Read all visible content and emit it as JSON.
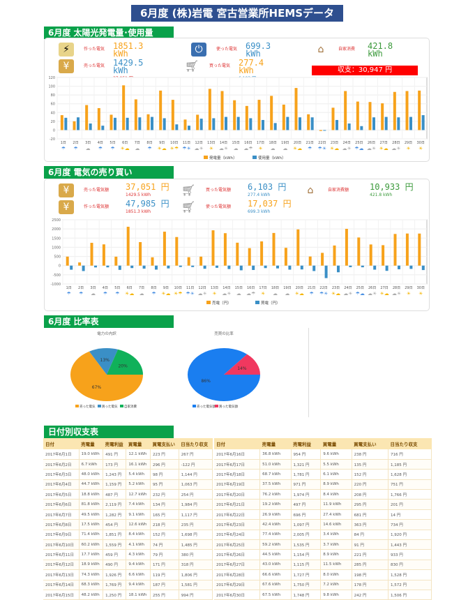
{
  "title": "6月度 (株)岩電 宮古営業所HEMSデータ",
  "sections": {
    "generation": "6月度  太陽光発電量･使用量",
    "trade": "6月度  電気の売り買い",
    "ratio": "6月度  比率表",
    "daily": "日付別収支表"
  },
  "summary1": {
    "made": {
      "label": "作った電気",
      "value": "1851.3",
      "unit": "kWh"
    },
    "used": {
      "label": "使った電気",
      "value": "699.3",
      "unit": "kWh"
    },
    "self": {
      "label": "自家消費",
      "value": "421.8",
      "unit": "kWh"
    },
    "sold": {
      "label": "売った電気",
      "value": "1429.5",
      "unit": "kWh",
      "yen": "37,051 円"
    },
    "bought": {
      "label": "買った電気",
      "value": "277.4",
      "unit": "kWh",
      "yen": "6,103 円"
    },
    "balance": "収支：30,947 円"
  },
  "summary2": {
    "sold": {
      "label": "売った電気額",
      "value": "37,051 円",
      "kwh": "1429.5 kWh"
    },
    "bought": {
      "label": "買った電気額",
      "value": "6,103 円",
      "kwh": "277.4 kWh"
    },
    "self": {
      "label": "自家消費額",
      "value": "10,933 円",
      "kwh": "421.8 kWh"
    },
    "made": {
      "label": "作った電気額",
      "value": "47,985 円",
      "kwh": "1851.3 kWh"
    },
    "used": {
      "label": "使った電気額",
      "value": "17,037 円",
      "kwh": "699.3 kWh"
    }
  },
  "colors": {
    "orange": "#f7a21b",
    "blue": "#3a8fc6",
    "green": "#3c9a3c",
    "red": "#ee3333",
    "pieBlue": "#1a7ef0",
    "pieRed": "#f0385f",
    "pieGreen": "#10b15a"
  },
  "weather": [
    "rain",
    "rain",
    "cloud",
    "rain",
    "rain",
    "sun-cloud",
    "cloud",
    "rain",
    "sun-cloud",
    "sun-rain",
    "rain-sun",
    "cloud-sun",
    "sun",
    "cloud-sun",
    "cloud",
    "cloud-rain",
    "sun",
    "cloud",
    "cloud",
    "sun-cloud",
    "rain",
    "rain-sun",
    "sun-cloud",
    "cloud-sun",
    "rain-cloud",
    "cloud-sun",
    "sun-cloud",
    "cloud-sun",
    "sun",
    "sun"
  ],
  "chart_data": [
    {
      "type": "bar",
      "title": "",
      "xlabel": "",
      "ylabel": "",
      "ylim": [
        -20,
        120
      ],
      "yticks": [
        "120",
        "100",
        "80",
        "60",
        "40",
        "20",
        "0",
        "-20"
      ],
      "categories": [
        "1日",
        "2日",
        "3日",
        "4日",
        "5日",
        "6日",
        "7日",
        "8日",
        "9日",
        "10日",
        "11日",
        "12日",
        "13日",
        "14日",
        "15日",
        "16日",
        "17日",
        "18日",
        "19日",
        "20日",
        "21日",
        "22日",
        "23日",
        "24日",
        "25日",
        "26日",
        "27日",
        "28日",
        "29日",
        "30日"
      ],
      "series": [
        {
          "name": "発電量（kWh）",
          "values": [
            34,
            20,
            57,
            50,
            35,
            102,
            70,
            36,
            90,
            69,
            24,
            35,
            94,
            89,
            68,
            55,
            69,
            78,
            58,
            96,
            36,
            -2,
            51,
            89,
            65,
            64,
            61,
            87,
            89,
            90
          ]
        },
        {
          "name": "使用量（kWh）",
          "values": [
            28,
            29,
            15,
            10,
            28,
            28,
            29,
            30,
            27,
            13,
            10,
            26,
            27,
            30,
            30,
            27,
            23,
            16,
            30,
            29,
            29,
            -1,
            23,
            15,
            9,
            29,
            30,
            29,
            30,
            34
          ]
        }
      ]
    },
    {
      "type": "bar",
      "title": "",
      "xlabel": "",
      "ylabel": "",
      "ylim": [
        -1000,
        2500
      ],
      "yticks": [
        "2500",
        "2000",
        "1500",
        "1000",
        "500",
        "0",
        "-500",
        "-1000"
      ],
      "categories": [
        "1日",
        "2日",
        "3日",
        "4日",
        "5日",
        "6日",
        "7日",
        "8日",
        "9日",
        "10日",
        "11日",
        "12日",
        "13日",
        "14日",
        "15日",
        "16日",
        "17日",
        "18日",
        "19日",
        "20日",
        "21日",
        "22日",
        "23日",
        "24日",
        "25日",
        "26日",
        "27日",
        "28日",
        "29日",
        "30日"
      ],
      "series": [
        {
          "name": "売電（円）",
          "values": [
            491,
            173,
            1243,
            1159,
            487,
            2119,
            1282,
            454,
            1851,
            1559,
            459,
            490,
            1926,
            1769,
            1250,
            954,
            1321,
            1781,
            971,
            1974,
            497,
            696,
            1097,
            2005,
            1535,
            1154,
            1115,
            1727,
            1750,
            1748
          ]
        },
        {
          "name": "買電（円）",
          "values": [
            -223,
            -296,
            -98,
            -95,
            -232,
            -134,
            -165,
            -218,
            -152,
            -74,
            -79,
            -171,
            -119,
            -187,
            -255,
            -238,
            -135,
            -152,
            -220,
            -208,
            -295,
            -681,
            -363,
            -84,
            -91,
            -221,
            -285,
            -198,
            -178,
            -242
          ]
        }
      ]
    },
    {
      "type": "pie",
      "title": "電力の内訳",
      "labels": [
        "売った電気",
        "買った電気",
        "自家消費"
      ],
      "values": [
        67,
        13,
        20
      ]
    },
    {
      "type": "pie",
      "title": "売買の比率",
      "labels": [
        "売った電気額",
        "買った電気額"
      ],
      "values": [
        86,
        14
      ]
    }
  ],
  "table": {
    "headers": [
      "日付",
      "売電量",
      "売電利益",
      "買電量",
      "買電支払い",
      "日当たり収支"
    ],
    "left": [
      [
        "2017年6月1日",
        "19.0 kWh",
        "491 円",
        "12.1 kWh",
        "223 円",
        "267 円"
      ],
      [
        "2017年6月2日",
        "6.7 kWh",
        "173 円",
        "16.1 kWh",
        "296 円",
        "-122 円"
      ],
      [
        "2017年6月3日",
        "48.0 kWh",
        "1,243 円",
        "5.4 kWh",
        "98 円",
        "1,144 円"
      ],
      [
        "2017年6月4日",
        "44.7 kWh",
        "1,159 円",
        "5.2 kWh",
        "95 円",
        "1,063 円"
      ],
      [
        "2017年6月5日",
        "18.8 kWh",
        "487 円",
        "12.7 kWh",
        "232 円",
        "254 円"
      ],
      [
        "2017年6月6日",
        "81.8 kWh",
        "2,119 円",
        "7.4 kWh",
        "134 円",
        "1,984 円"
      ],
      [
        "2017年6月7日",
        "49.5 kWh",
        "1,282 円",
        "9.1 kWh",
        "165 円",
        "1,117 円"
      ],
      [
        "2017年6月8日",
        "17.5 kWh",
        "454 円",
        "12.6 kWh",
        "218 円",
        "235 円"
      ],
      [
        "2017年6月9日",
        "71.4 kWh",
        "1,851 円",
        "8.4 kWh",
        "152 円",
        "1,698 円"
      ],
      [
        "2017年6月10日",
        "60.2 kWh",
        "1,559 円",
        "4.1 kWh",
        "74 円",
        "1,485 円"
      ],
      [
        "2017年6月11日",
        "17.7 kWh",
        "459 円",
        "4.3 kWh",
        "79 円",
        "380 円"
      ],
      [
        "2017年6月12日",
        "18.9 kWh",
        "490 円",
        "9.4 kWh",
        "171 円",
        "318 円"
      ],
      [
        "2017年6月13日",
        "74.3 kWh",
        "1,926 円",
        "6.6 kWh",
        "119 円",
        "1,806 円"
      ],
      [
        "2017年6月14日",
        "68.3 kWh",
        "1,769 円",
        "9.4 kWh",
        "187 円",
        "1,581 円"
      ],
      [
        "2017年6月15日",
        "48.2 kWh",
        "1,250 円",
        "18.1 kWh",
        "255 円",
        "994 円"
      ]
    ],
    "right": [
      [
        "2017年6月16日",
        "36.8 kWh",
        "954 円",
        "9.6 kWh",
        "238 円",
        "716 円"
      ],
      [
        "2017年6月17日",
        "51.0 kWh",
        "1,321 円",
        "5.5 kWh",
        "135 円",
        "1,185 円"
      ],
      [
        "2017年6月18日",
        "68.7 kWh",
        "1,781 円",
        "6.1 kWh",
        "152 円",
        "1,628 円"
      ],
      [
        "2017年6月19日",
        "37.5 kWh",
        "971 円",
        "8.9 kWh",
        "220 円",
        "751 円"
      ],
      [
        "2017年6月20日",
        "76.2 kWh",
        "1,974 円",
        "8.4 kWh",
        "208 円",
        "1,766 円"
      ],
      [
        "2017年6月21日",
        "19.2 kWh",
        "497 円",
        "11.9 kWh",
        "295 円",
        "201 円"
      ],
      [
        "2017年6月22日",
        "26.9 kWh",
        "696 円",
        "27.4 kWh",
        "681 円",
        "14 円"
      ],
      [
        "2017年6月23日",
        "42.4 kWh",
        "1,097 円",
        "14.6 kWh",
        "363 円",
        "734 円"
      ],
      [
        "2017年6月24日",
        "77.4 kWh",
        "2,005 円",
        "3.4 kWh",
        "84 円",
        "1,920 円"
      ],
      [
        "2017年6月25日",
        "59.2 kWh",
        "1,535 円",
        "3.7 kWh",
        "91 円",
        "1,443 円"
      ],
      [
        "2017年6月26日",
        "44.5 kWh",
        "1,154 円",
        "8.9 kWh",
        "221 円",
        "933 円"
      ],
      [
        "2017年6月27日",
        "43.0 kWh",
        "1,115 円",
        "11.5 kWh",
        "285 円",
        "830 円"
      ],
      [
        "2017年6月28日",
        "66.6 kWh",
        "1,727 円",
        "8.0 kWh",
        "198 円",
        "1,528 円"
      ],
      [
        "2017年6月29日",
        "67.6 kWh",
        "1,750 円",
        "7.2 kWh",
        "178 円",
        "1,572 円"
      ],
      [
        "2017年6月30日",
        "67.5 kWh",
        "1,748 円",
        "9.8 kWh",
        "242 円",
        "1,506 円"
      ]
    ]
  }
}
